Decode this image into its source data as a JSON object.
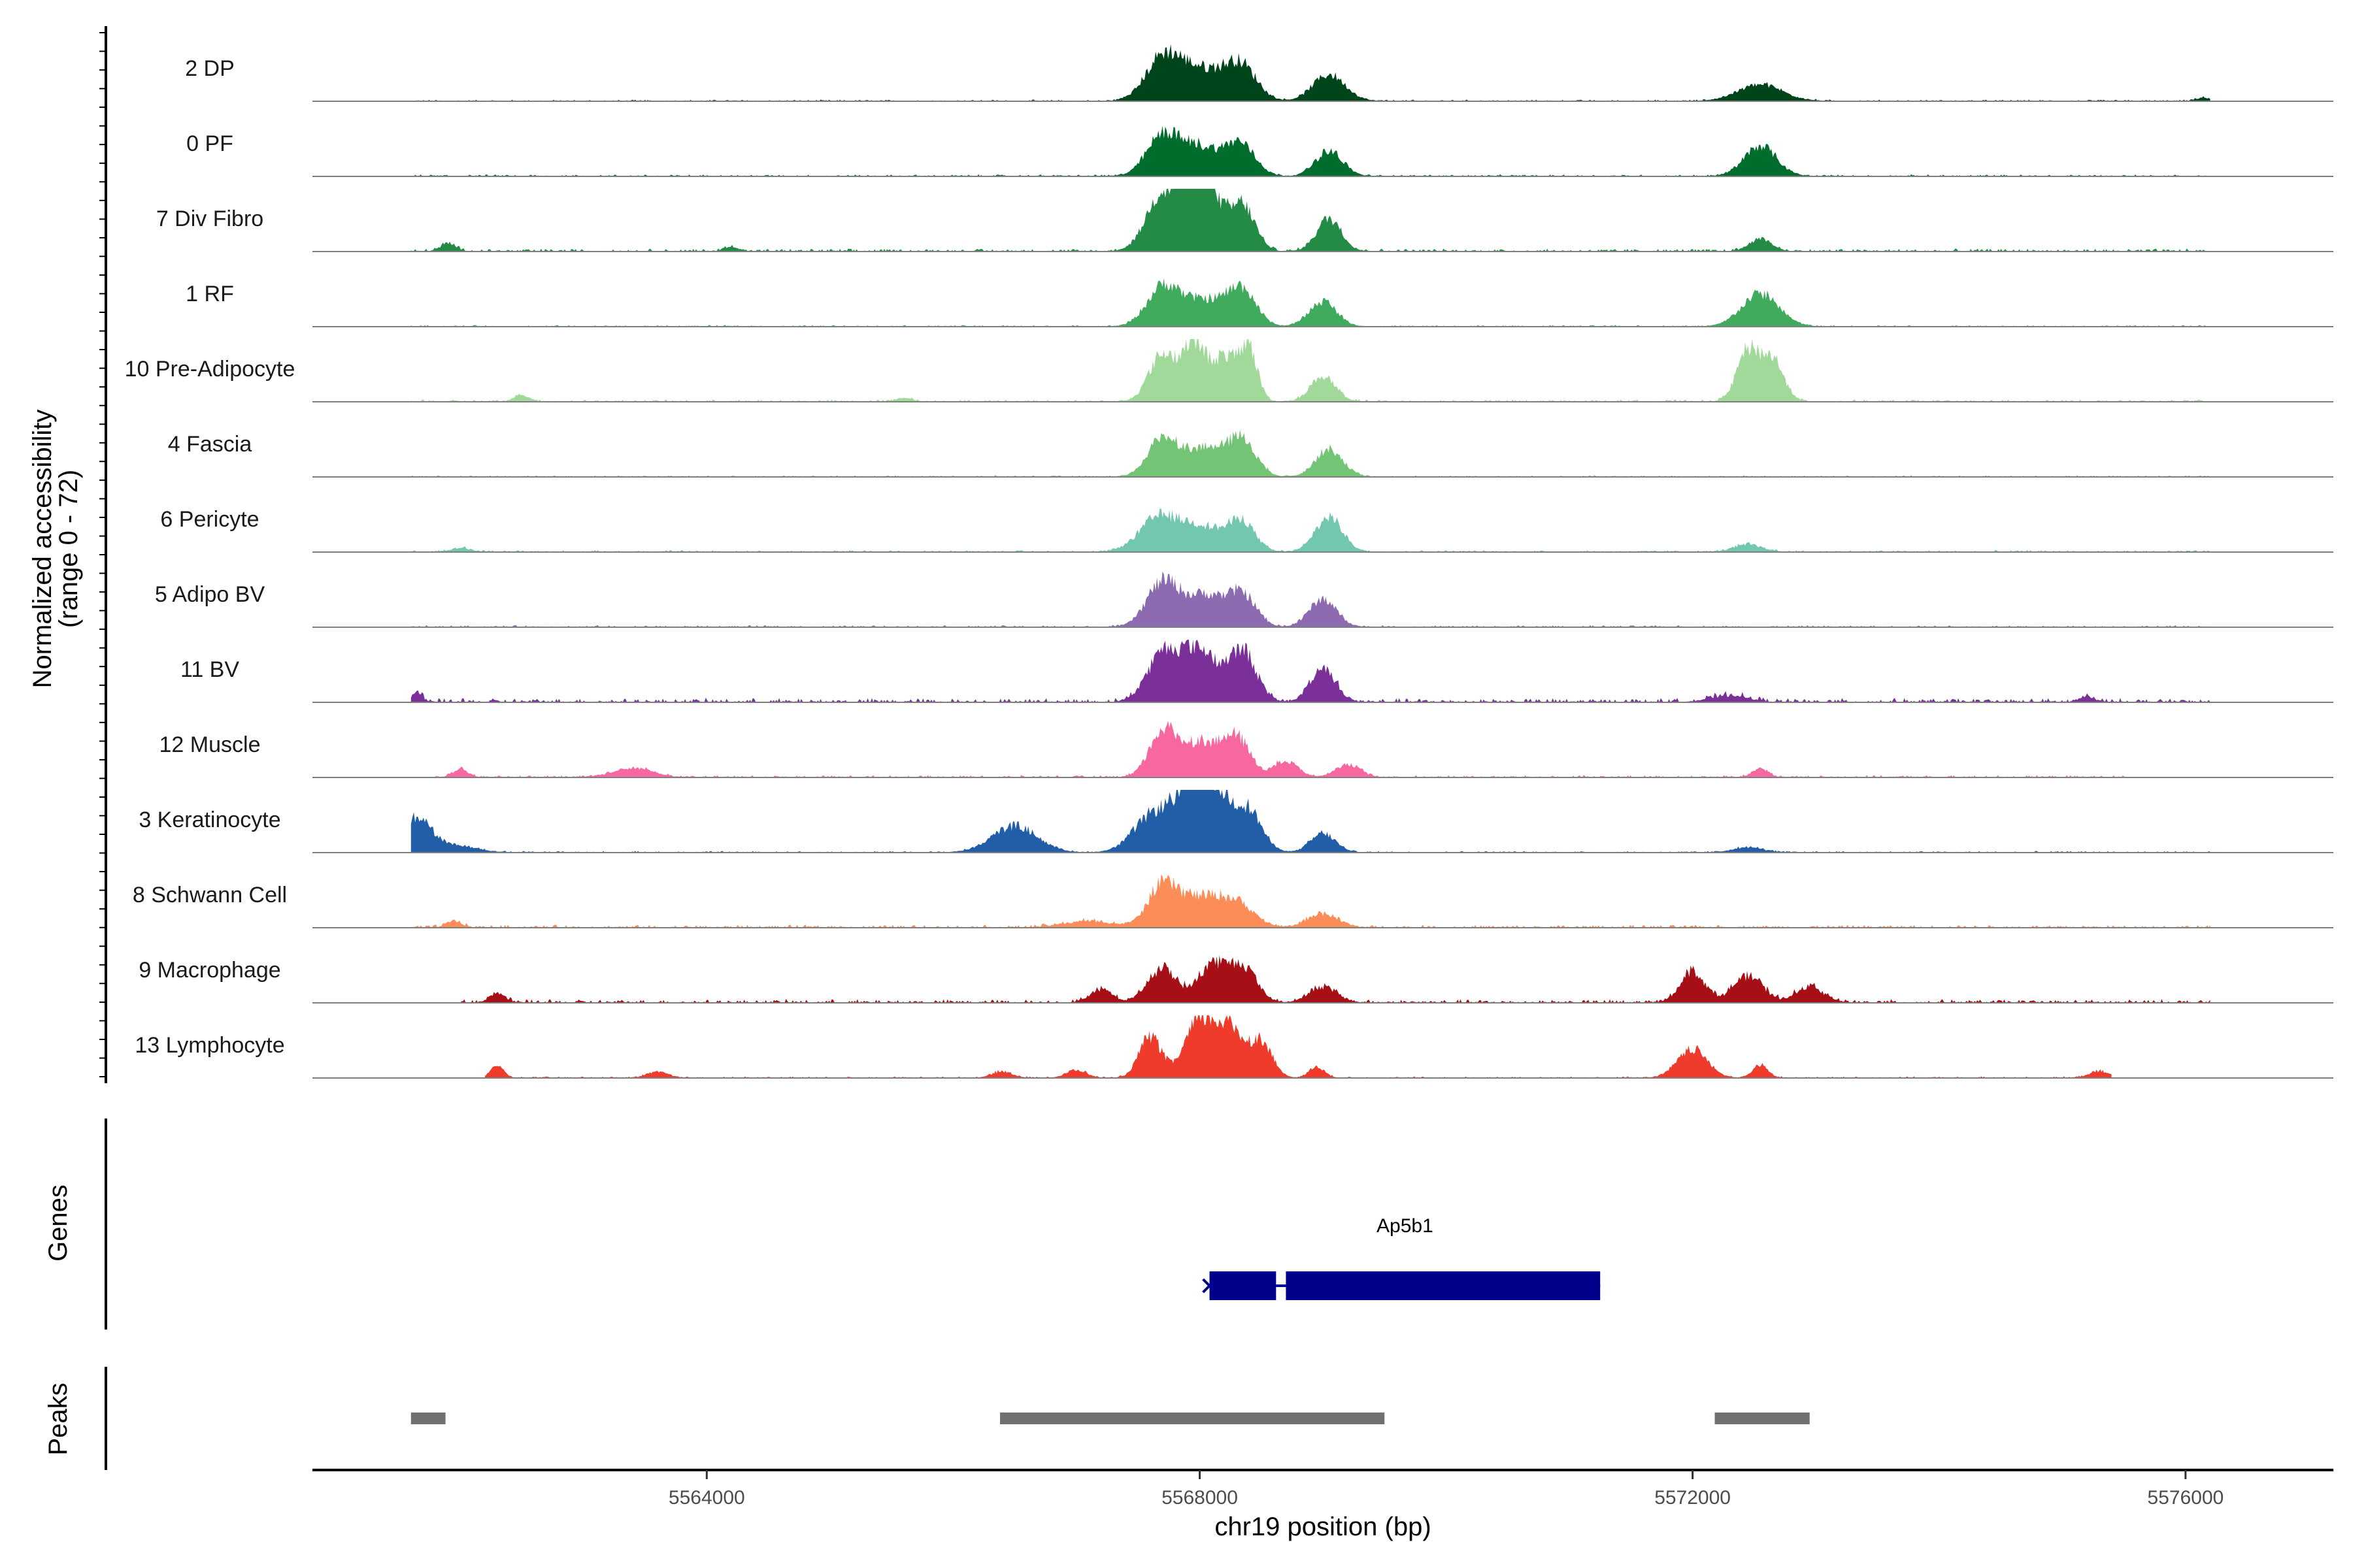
{
  "chart_data": {
    "type": "area",
    "chromosome": "chr19",
    "xlabel": "chr19 position (bp)",
    "ylabel": "Normalized accessibility",
    "ylabel_sub": "(range 0 - 72)",
    "xlim": [
      5560800,
      5577200
    ],
    "xticks": [
      5564000,
      5568000,
      5572000,
      5576000
    ],
    "xtick_labels": [
      "5564000",
      "5568000",
      "5572000",
      "5576000"
    ],
    "grid": false,
    "tracks": [
      {
        "name": "2 DP",
        "color": "#00441b",
        "range": [
          5561600,
          5576200
        ],
        "noise": 0.02,
        "peaks": [
          [
            5567700,
            140,
            0.65
          ],
          [
            5568000,
            180,
            0.48
          ],
          [
            5568330,
            130,
            0.55
          ],
          [
            5569050,
            130,
            0.42
          ],
          [
            5572550,
            180,
            0.26
          ],
          [
            5576150,
            60,
            0.05
          ]
        ]
      },
      {
        "name": "0 PF",
        "color": "#006d2c",
        "range": [
          5561600,
          5576200
        ],
        "noise": 0.025,
        "peaks": [
          [
            5567700,
            130,
            0.62
          ],
          [
            5568000,
            160,
            0.45
          ],
          [
            5568330,
            120,
            0.5
          ],
          [
            5569050,
            110,
            0.4
          ],
          [
            5572550,
            130,
            0.48
          ]
        ]
      },
      {
        "name": "7 Div Fibro",
        "color": "#238b45",
        "range": [
          5561600,
          5576200
        ],
        "noise": 0.04,
        "peaks": [
          [
            5567700,
            130,
            0.92
          ],
          [
            5567950,
            110,
            0.78
          ],
          [
            5568050,
            130,
            0.85
          ],
          [
            5568350,
            100,
            0.7
          ],
          [
            5569050,
            100,
            0.52
          ],
          [
            5572550,
            90,
            0.2
          ],
          [
            5561900,
            60,
            0.12
          ],
          [
            5564200,
            60,
            0.07
          ]
        ]
      },
      {
        "name": "1 RF",
        "color": "#41ab5d",
        "range": [
          5561600,
          5576200
        ],
        "noise": 0.02,
        "peaks": [
          [
            5567700,
            130,
            0.58
          ],
          [
            5568050,
            200,
            0.42
          ],
          [
            5568350,
            110,
            0.5
          ],
          [
            5569000,
            110,
            0.4
          ],
          [
            5572550,
            150,
            0.52
          ]
        ]
      },
      {
        "name": "10 Pre-Adipocyte",
        "color": "#a1d99b",
        "range": [
          5561600,
          5576200
        ],
        "noise": 0.03,
        "peaks": [
          [
            5567700,
            110,
            0.75
          ],
          [
            5567950,
            90,
            0.88
          ],
          [
            5568200,
            110,
            0.7
          ],
          [
            5568400,
            70,
            0.78
          ],
          [
            5569000,
            100,
            0.4
          ],
          [
            5572450,
            90,
            0.8
          ],
          [
            5572650,
            90,
            0.65
          ],
          [
            5562500,
            60,
            0.1
          ],
          [
            5565600,
            60,
            0.06
          ]
        ]
      },
      {
        "name": "4 Fascia",
        "color": "#74c476",
        "range": [
          5561600,
          5576200
        ],
        "noise": 0.02,
        "peaks": [
          [
            5567700,
            120,
            0.58
          ],
          [
            5568050,
            180,
            0.45
          ],
          [
            5568350,
            110,
            0.52
          ],
          [
            5569050,
            110,
            0.44
          ]
        ]
      },
      {
        "name": "6 Pericyte",
        "color": "#74c7af",
        "range": [
          5561600,
          5576200
        ],
        "noise": 0.025,
        "peaks": [
          [
            5567650,
            150,
            0.45
          ],
          [
            5568000,
            220,
            0.42
          ],
          [
            5568350,
            100,
            0.4
          ],
          [
            5569050,
            110,
            0.55
          ],
          [
            5572450,
            110,
            0.12
          ],
          [
            5562000,
            80,
            0.06
          ]
        ]
      },
      {
        "name": "5 Adipo BV",
        "color": "#8c6bb1",
        "range": [
          5561600,
          5576200
        ],
        "noise": 0.025,
        "peaks": [
          [
            5567700,
            130,
            0.7
          ],
          [
            5568050,
            160,
            0.5
          ],
          [
            5568350,
            110,
            0.48
          ],
          [
            5569000,
            110,
            0.44
          ]
        ]
      },
      {
        "name": "11 BV",
        "color": "#7a2f99",
        "range": [
          5561600,
          5576200
        ],
        "noise": 0.06,
        "peaks": [
          [
            5567700,
            130,
            0.72
          ],
          [
            5568000,
            150,
            0.82
          ],
          [
            5568350,
            110,
            0.78
          ],
          [
            5569000,
            100,
            0.55
          ],
          [
            5561650,
            40,
            0.15
          ],
          [
            5572300,
            150,
            0.1
          ],
          [
            5575200,
            60,
            0.08
          ]
        ]
      },
      {
        "name": "12 Muscle",
        "color": "#f768a1",
        "range": [
          5561800,
          5575500
        ],
        "noise": 0.03,
        "peaks": [
          [
            5567700,
            110,
            0.7
          ],
          [
            5568000,
            150,
            0.55
          ],
          [
            5568300,
            110,
            0.6
          ],
          [
            5568700,
            100,
            0.25
          ],
          [
            5569200,
            100,
            0.2
          ],
          [
            5563400,
            150,
            0.15
          ],
          [
            5562000,
            60,
            0.12
          ],
          [
            5572550,
            60,
            0.15
          ]
        ]
      },
      {
        "name": "3 Keratinocyte",
        "color": "#225ea8",
        "range": [
          5561600,
          5576200
        ],
        "noise": 0.02,
        "peaks": [
          [
            5567600,
            150,
            0.52
          ],
          [
            5567900,
            150,
            0.72
          ],
          [
            5568100,
            150,
            0.92
          ],
          [
            5568400,
            110,
            0.6
          ],
          [
            5566500,
            180,
            0.42
          ],
          [
            5569000,
            100,
            0.3
          ],
          [
            5561650,
            120,
            0.55
          ],
          [
            5562000,
            150,
            0.1
          ],
          [
            5572450,
            120,
            0.08
          ]
        ]
      },
      {
        "name": "8 Schwann Cell",
        "color": "#fc8d59",
        "range": [
          5561600,
          5576200
        ],
        "noise": 0.04,
        "peaks": [
          [
            5567700,
            120,
            0.62
          ],
          [
            5568000,
            170,
            0.45
          ],
          [
            5568300,
            140,
            0.35
          ],
          [
            5569000,
            120,
            0.22
          ],
          [
            5567100,
            200,
            0.1
          ],
          [
            5561950,
            60,
            0.1
          ]
        ]
      },
      {
        "name": "9 Macrophage",
        "color": "#a50f15",
        "range": [
          5562000,
          5576200
        ],
        "noise": 0.05,
        "peaks": [
          [
            5567700,
            120,
            0.55
          ],
          [
            5568100,
            110,
            0.6
          ],
          [
            5568350,
            110,
            0.58
          ],
          [
            5567200,
            90,
            0.2
          ],
          [
            5569000,
            110,
            0.25
          ],
          [
            5572000,
            100,
            0.5
          ],
          [
            5572450,
            120,
            0.42
          ],
          [
            5572950,
            110,
            0.25
          ],
          [
            5562300,
            60,
            0.15
          ]
        ]
      },
      {
        "name": "13 Lymphocyte",
        "color": "#ee3b2b",
        "range": [
          5562200,
          5575400
        ],
        "noise": 0.02,
        "peaks": [
          [
            5567600,
            90,
            0.65
          ],
          [
            5568000,
            120,
            0.9
          ],
          [
            5568250,
            110,
            0.75
          ],
          [
            5568500,
            90,
            0.55
          ],
          [
            5572000,
            120,
            0.45
          ],
          [
            5572550,
            60,
            0.2
          ],
          [
            5562300,
            50,
            0.2
          ],
          [
            5566400,
            80,
            0.1
          ],
          [
            5567000,
            80,
            0.12
          ],
          [
            5568950,
            60,
            0.18
          ],
          [
            5563600,
            80,
            0.1
          ],
          [
            5575300,
            80,
            0.1
          ]
        ]
      }
    ],
    "genes_track_label": "Genes",
    "gene": {
      "name": "Ap5b1",
      "color": "#00008b",
      "start": 5568080,
      "end": 5571250,
      "exons": [
        [
          5568080,
          5568620
        ],
        [
          5568700,
          5571250
        ]
      ]
    },
    "peaks_track_label": "Peaks",
    "peaks_color": "#707070",
    "peak_regions": [
      [
        5561600,
        5561880
      ],
      [
        5566380,
        5569500
      ],
      [
        5572180,
        5572950
      ]
    ]
  }
}
